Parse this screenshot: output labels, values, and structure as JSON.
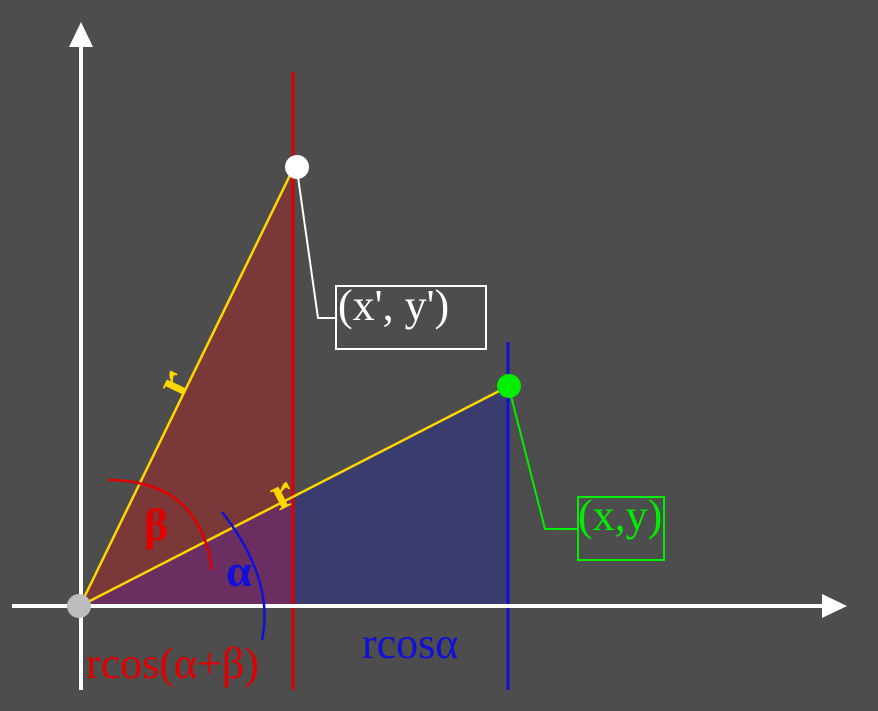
{
  "labels": {
    "point_rotated": "(x', y')",
    "point_original": "(x,y)",
    "radius_upper": "r",
    "radius_lower": "r",
    "angle_beta": "β",
    "angle_alpha": "α",
    "projection_rotated": "rcos(α+β)",
    "projection_original": "rcosα"
  },
  "colors": {
    "background": "#4d4d4d",
    "axes": "#ffffff",
    "radius_line": "#ffd700",
    "red_accent": "#e00000",
    "blue_accent": "#1010d8",
    "green_accent": "#00ee00",
    "red_fill": "#7a3838",
    "blue_fill": "#3a3c6e",
    "purple_fill": "#6a2f60",
    "origin_point": "#bdbdbd"
  }
}
